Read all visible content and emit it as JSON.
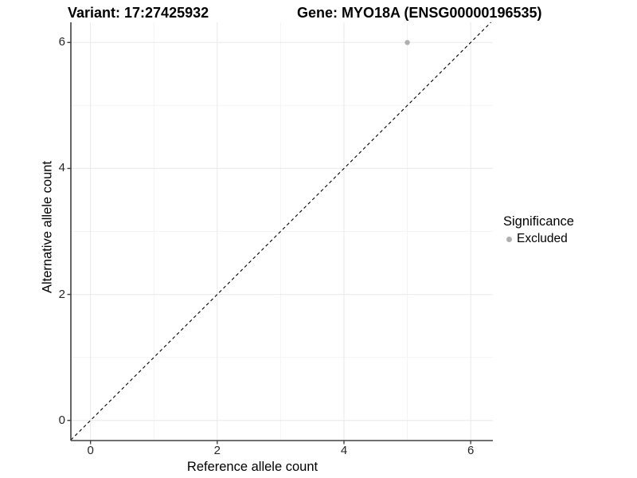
{
  "header": {
    "variant_title": "Variant: 17:27425932",
    "gene_title": "Gene: MYO18A (ENSG00000196535)"
  },
  "legend": {
    "title": "Significance",
    "items": [
      {
        "label": "Excluded",
        "color": "#b0b0b0"
      }
    ]
  },
  "colors": {
    "background": "#ffffff",
    "point": "#b0b0b0",
    "grid_major": "#e9e9e9",
    "grid_minor": "#f4f4f4",
    "axis": "#404040",
    "tick": "#404040",
    "identity_line": "#000000",
    "text": "#000000"
  },
  "chart_data": {
    "type": "scatter",
    "title": "Variant: 17:27425932    Gene: MYO18A (ENSG00000196535)",
    "xlabel": "Reference allele count",
    "ylabel": "Alternative allele count",
    "x_ticks": [
      0,
      2,
      4,
      6
    ],
    "y_ticks": [
      0,
      2,
      4,
      6
    ],
    "x_minor_ticks": [
      1,
      3,
      5
    ],
    "y_minor_ticks": [
      1,
      3,
      5
    ],
    "xlim": [
      -0.31,
      6.35
    ],
    "ylim": [
      -0.32,
      6.32
    ],
    "grid": true,
    "legend_position": "right",
    "series": [
      {
        "name": "Excluded",
        "color": "#b0b0b0",
        "point_radius": 3.2,
        "points": [
          [
            5,
            6
          ]
        ]
      }
    ],
    "identity_line": {
      "slope": 1,
      "intercept": 0,
      "style": "dashed",
      "color": "#000000"
    }
  }
}
